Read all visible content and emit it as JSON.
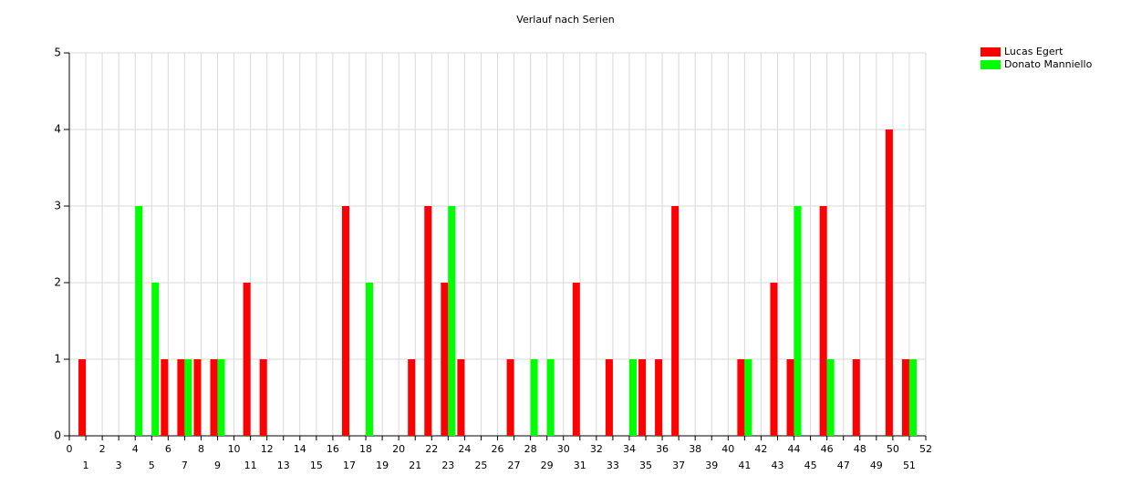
{
  "chart_data": {
    "type": "bar",
    "title": "Verlauf nach Serien",
    "x": [
      1,
      2,
      3,
      4,
      5,
      6,
      7,
      8,
      9,
      10,
      11,
      12,
      13,
      14,
      15,
      16,
      17,
      18,
      19,
      20,
      21,
      22,
      23,
      24,
      25,
      26,
      27,
      28,
      29,
      30,
      31,
      32,
      33,
      34,
      35,
      36,
      37,
      38,
      39,
      40,
      41,
      42,
      43,
      44,
      45,
      46,
      47,
      48,
      49,
      50,
      51
    ],
    "series": [
      {
        "name": "Lucas Egert",
        "color": "#ff0000",
        "values": [
          1,
          0,
          0,
          0,
          0,
          1,
          1,
          1,
          1,
          0,
          2,
          1,
          0,
          0,
          0,
          0,
          3,
          0,
          0,
          0,
          1,
          3,
          2,
          1,
          0,
          0,
          1,
          0,
          0,
          0,
          2,
          0,
          1,
          0,
          1,
          1,
          3,
          0,
          0,
          0,
          1,
          0,
          2,
          1,
          0,
          3,
          0,
          1,
          0,
          4,
          1
        ]
      },
      {
        "name": "Donato Manniello",
        "color": "#00ff00",
        "values": [
          0,
          0,
          0,
          3,
          2,
          0,
          1,
          0,
          1,
          0,
          0,
          0,
          0,
          0,
          0,
          0,
          0,
          2,
          0,
          0,
          0,
          0,
          3,
          0,
          0,
          0,
          0,
          1,
          1,
          0,
          0,
          0,
          0,
          1,
          0,
          0,
          0,
          0,
          0,
          0,
          1,
          0,
          0,
          3,
          0,
          1,
          0,
          0,
          0,
          0,
          1
        ]
      }
    ],
    "xlim": [
      0,
      52
    ],
    "xticks": [
      0,
      1,
      2,
      3,
      4,
      5,
      6,
      7,
      8,
      9,
      10,
      11,
      12,
      13,
      14,
      15,
      16,
      17,
      18,
      19,
      20,
      21,
      22,
      23,
      24,
      25,
      26,
      27,
      28,
      29,
      30,
      31,
      32,
      33,
      34,
      35,
      36,
      37,
      38,
      39,
      40,
      41,
      42,
      43,
      44,
      45,
      46,
      47,
      48,
      49,
      50,
      51,
      52
    ],
    "ylim": [
      0,
      5
    ],
    "yticks": [
      0,
      1,
      2,
      3,
      4,
      5
    ],
    "grid": true,
    "legend": "top-right"
  }
}
